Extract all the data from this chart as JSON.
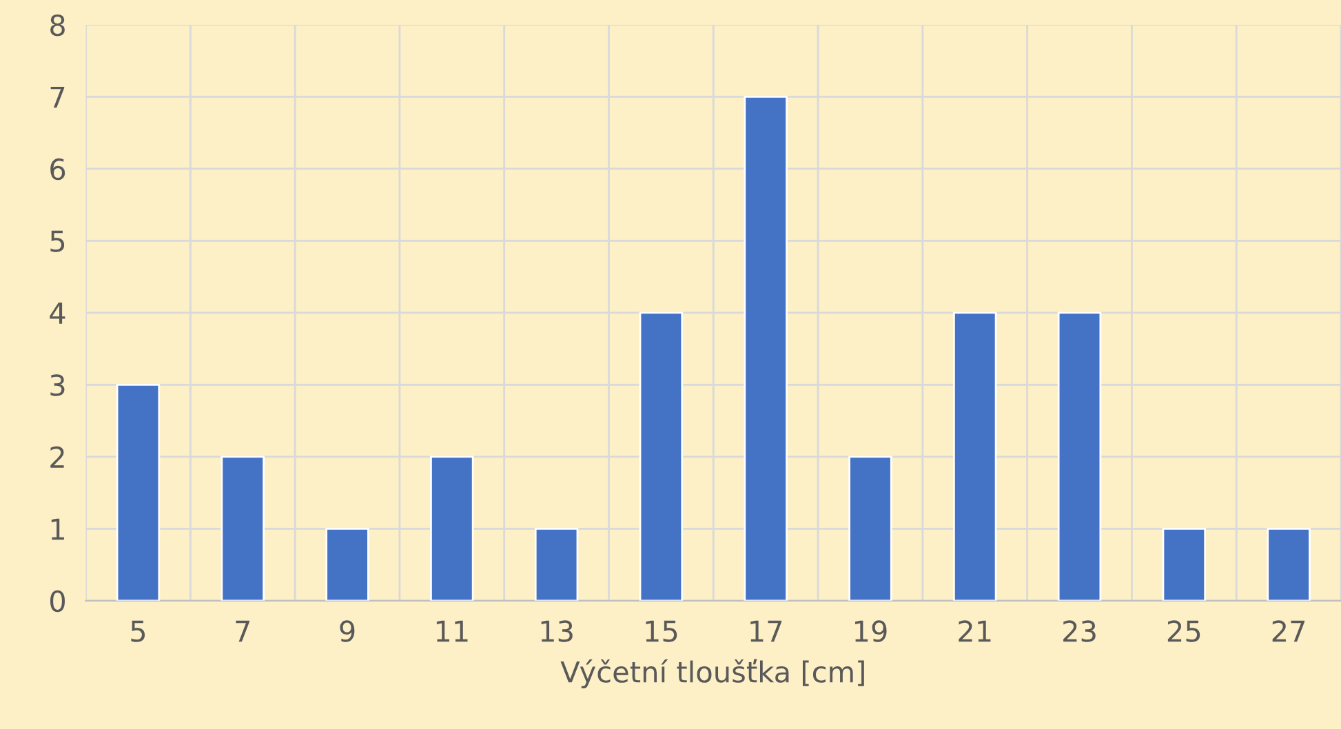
{
  "chart_data": {
    "type": "bar",
    "xlabel": "Výčetní tloušťka [cm]",
    "categories": [
      "5",
      "7",
      "9",
      "11",
      "13",
      "15",
      "17",
      "19",
      "21",
      "23",
      "25",
      "27"
    ],
    "values": [
      3,
      2,
      1,
      2,
      1,
      4,
      7,
      2,
      4,
      4,
      1,
      1
    ],
    "color": "#4472c4",
    "ylim": [
      0,
      8
    ],
    "yticks": [
      0,
      1,
      2,
      3,
      4,
      5,
      6,
      7,
      8
    ],
    "grid": true
  }
}
